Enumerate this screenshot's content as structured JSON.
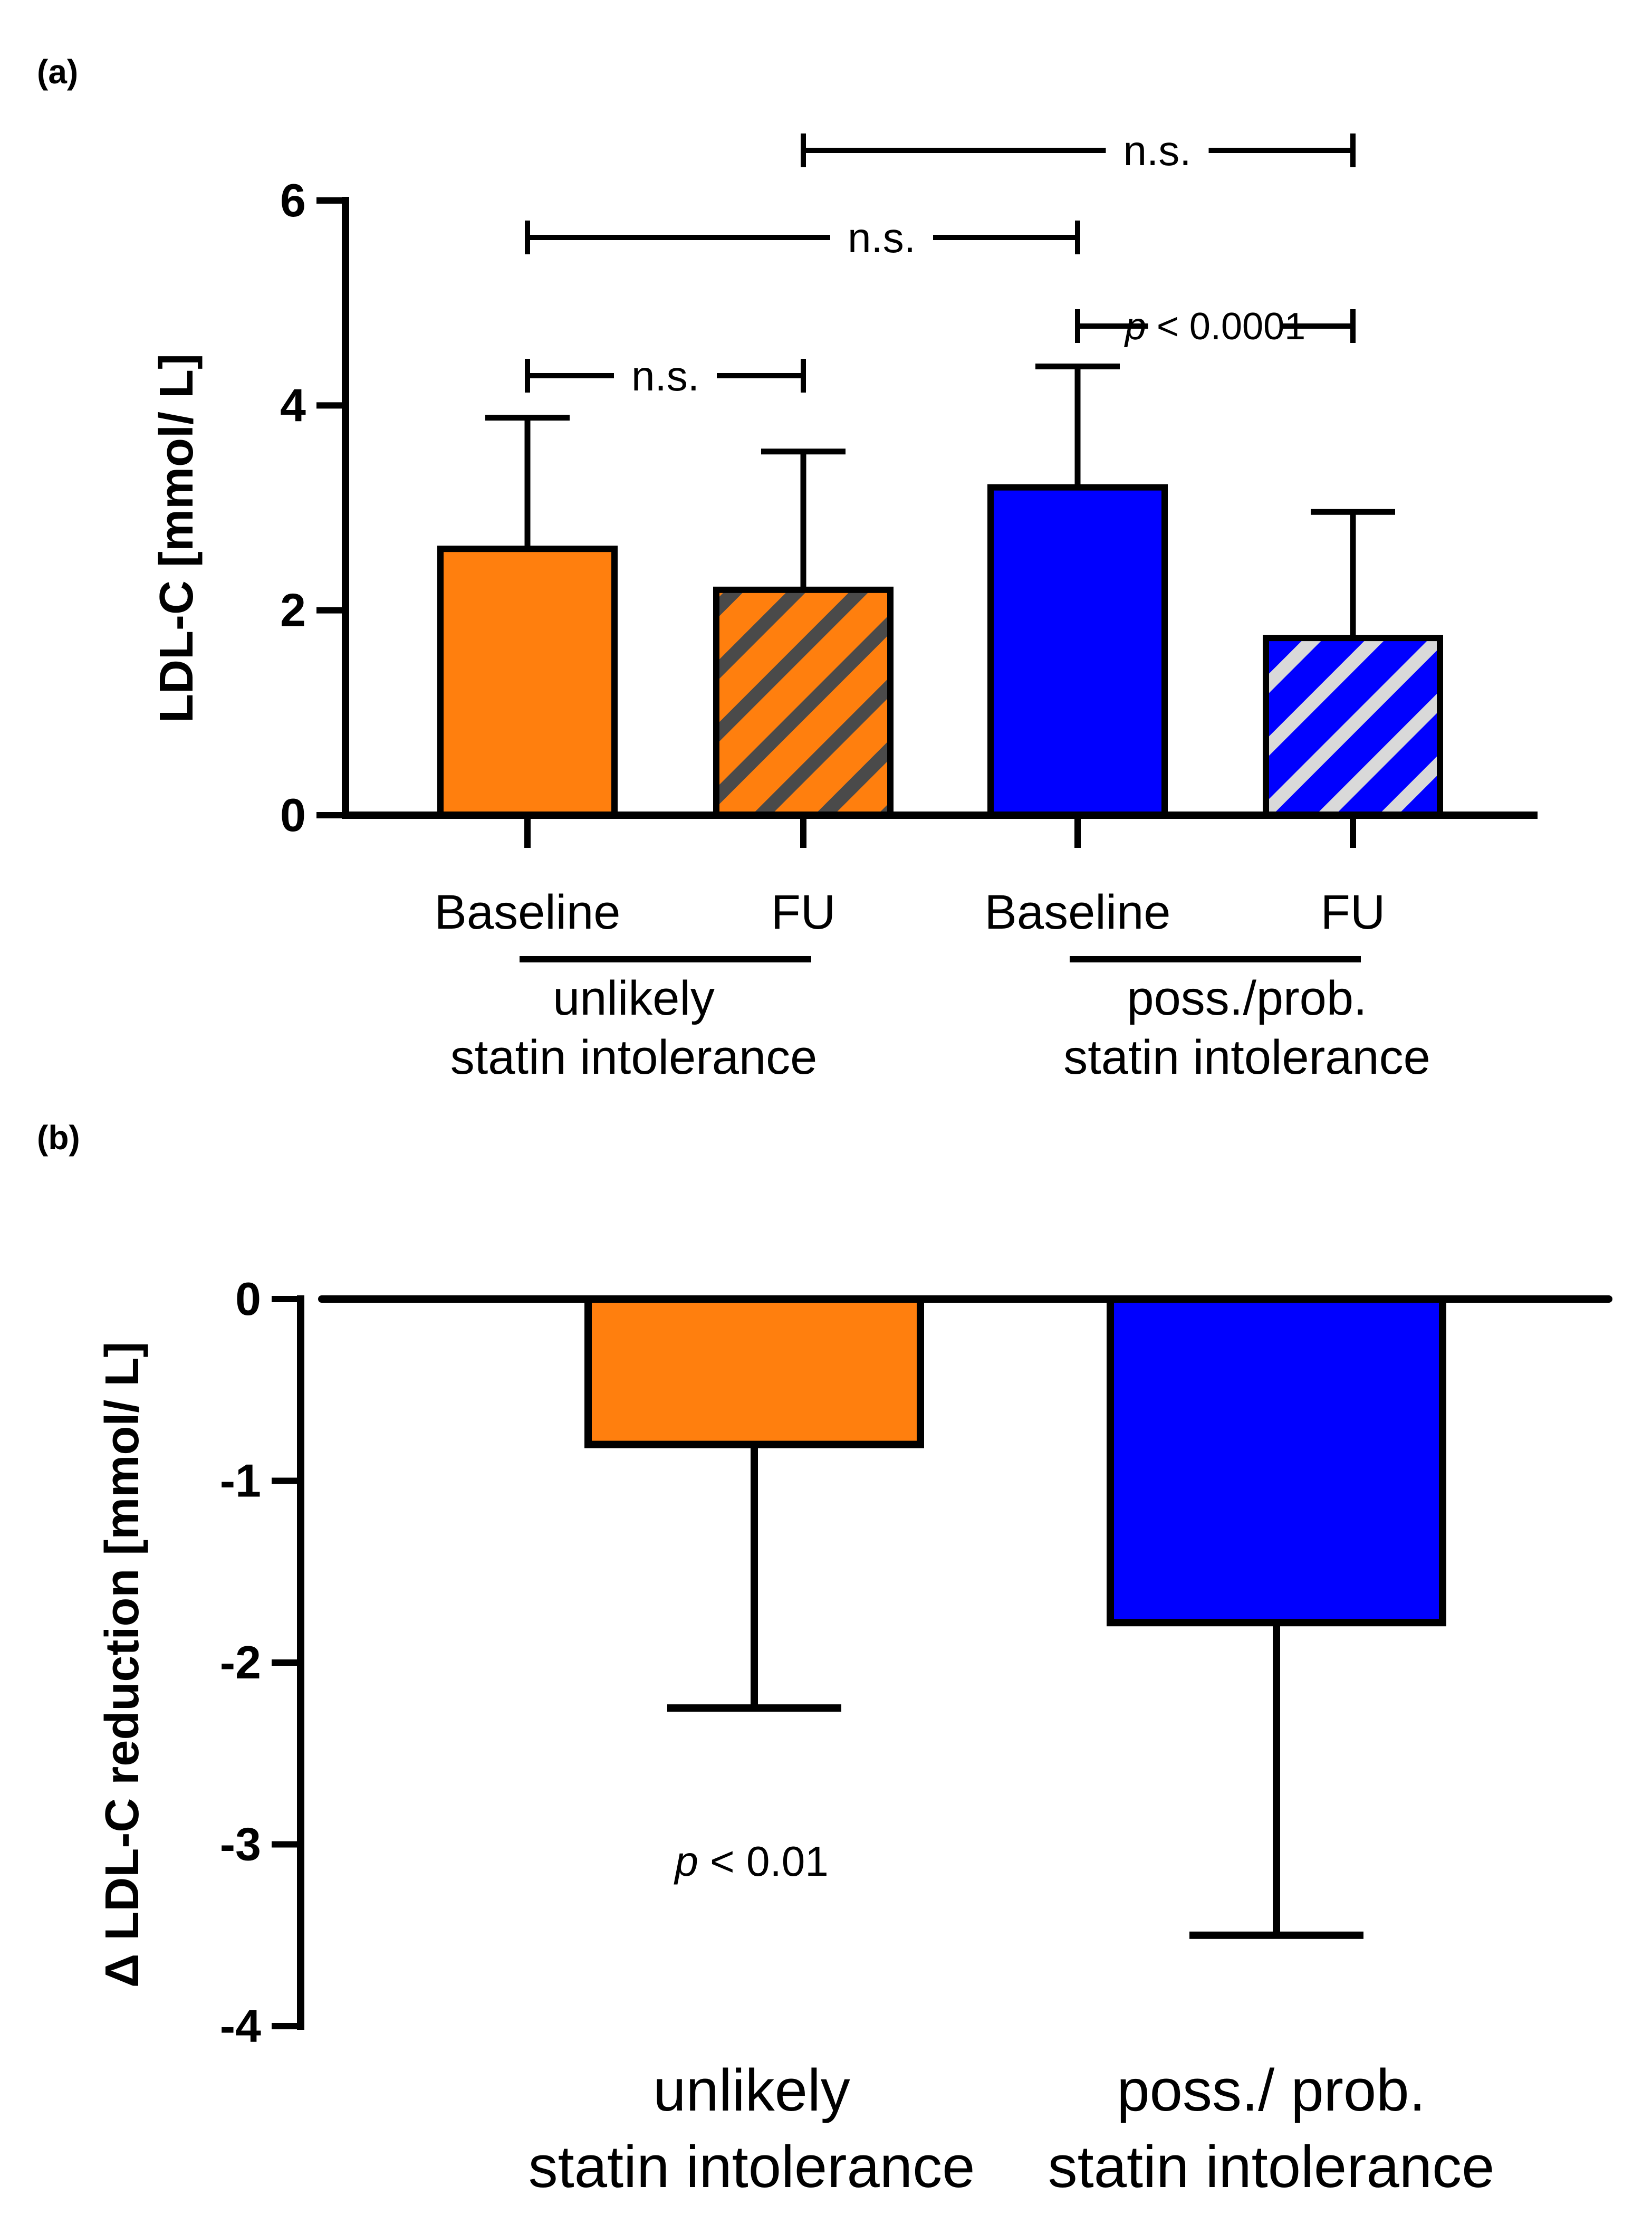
{
  "colors": {
    "orange": "#ff7f0e",
    "blue": "#0000ff",
    "hatch_on_orange": "#4a4a4a",
    "hatch_on_blue": "#d9d9d9",
    "outline": "#000000"
  },
  "chart_data": [
    {
      "panel_label": "(a)",
      "type": "bar",
      "ylabel": "LDL-C [mmol/ L]",
      "ylim": [
        0,
        6
      ],
      "yticks": [
        "0",
        "2",
        "4",
        "6"
      ],
      "categories": [
        "Baseline",
        "FU",
        "Baseline",
        "FU"
      ],
      "groups": [
        {
          "label_line1": "unlikely",
          "label_line2": "statin intolerance",
          "categories": [
            0,
            1
          ]
        },
        {
          "label_line1": "poss./prob.",
          "label_line2": "statin intolerance",
          "categories": [
            2,
            3
          ]
        }
      ],
      "values": [
        2.6,
        2.2,
        3.2,
        1.73
      ],
      "error_upper": [
        3.88,
        3.55,
        4.38,
        2.96
      ],
      "bar_colors": [
        "orange",
        "orange",
        "blue",
        "blue"
      ],
      "bar_hatched": [
        false,
        true,
        false,
        true
      ],
      "significance": [
        {
          "from": 0,
          "to": 1,
          "label": "n.s."
        },
        {
          "from": 0,
          "to": 2,
          "label": "n.s."
        },
        {
          "from": 1,
          "to": 3,
          "label": "n.s."
        },
        {
          "from": 2,
          "to": 3,
          "label_p": "p",
          "label_rest": " < 0.0001"
        }
      ]
    },
    {
      "panel_label": "(b)",
      "type": "bar",
      "ylabel": "Δ LDL-C reduction [mmol/ L]",
      "ylim": [
        -4,
        0
      ],
      "yticks": [
        "0",
        "-1",
        "-2",
        "-3",
        "-4"
      ],
      "categories": [
        {
          "line1": "unlikely",
          "line2": "statin intolerance"
        },
        {
          "line1": "poss./ prob.",
          "line2": "statin intolerance"
        }
      ],
      "values": [
        -0.8,
        -1.78
      ],
      "error_lower": [
        -2.25,
        -3.5
      ],
      "bar_colors": [
        "orange",
        "blue"
      ],
      "annotation": {
        "p": "p",
        "rest": " < 0.01"
      }
    }
  ]
}
